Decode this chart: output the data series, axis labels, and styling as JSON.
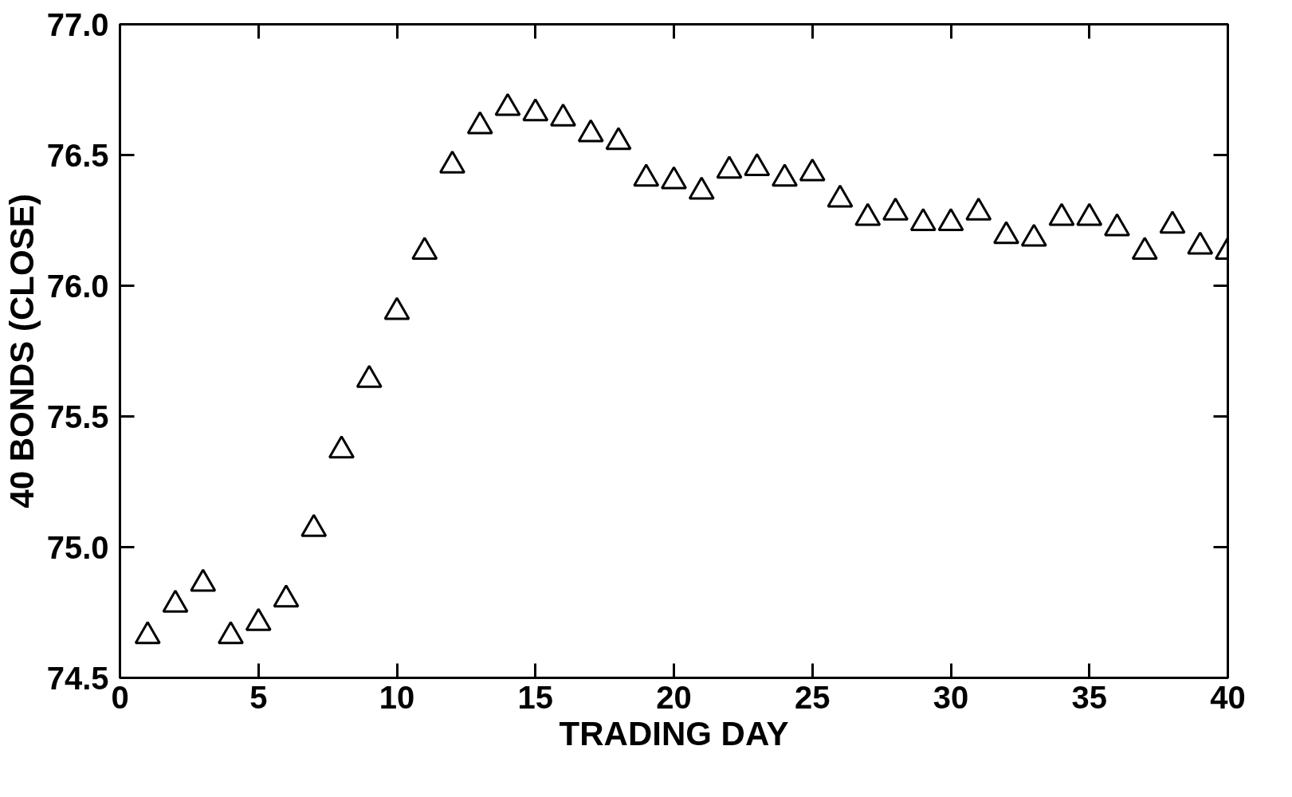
{
  "chart_data": {
    "type": "scatter",
    "xlabel": "TRADING DAY",
    "ylabel": "40 BONDS (CLOSE)",
    "x": [
      1,
      2,
      3,
      4,
      5,
      6,
      7,
      8,
      9,
      10,
      11,
      12,
      13,
      14,
      15,
      16,
      17,
      18,
      19,
      20,
      21,
      22,
      23,
      24,
      25,
      26,
      27,
      28,
      29,
      30,
      31,
      32,
      33,
      34,
      35,
      36,
      37,
      38,
      39,
      40
    ],
    "series": [
      {
        "color": "#000000",
        "values": [
          74.66,
          74.78,
          74.86,
          74.66,
          74.71,
          74.8,
          75.07,
          75.37,
          75.64,
          75.9,
          76.13,
          76.46,
          76.61,
          76.68,
          76.66,
          76.64,
          76.58,
          76.55,
          76.41,
          76.4,
          76.36,
          76.44,
          76.45,
          76.41,
          76.43,
          76.33,
          76.26,
          76.28,
          76.24,
          76.24,
          76.28,
          76.19,
          76.18,
          76.26,
          76.26,
          76.22,
          76.13,
          76.23,
          76.15,
          76.13
        ]
      }
    ],
    "marker": "triangle",
    "xlim": [
      0,
      40
    ],
    "ylim": [
      74.5,
      77.0
    ],
    "xticks": [
      0,
      5,
      10,
      15,
      20,
      25,
      30,
      35,
      40
    ],
    "yticks": [
      {
        "value": 74.5,
        "label": "74.5"
      },
      {
        "value": 75.0,
        "label": "75.0"
      },
      {
        "value": 75.5,
        "label": "75.5"
      },
      {
        "value": 76.0,
        "label": "76.0"
      },
      {
        "value": 76.5,
        "label": "76.5"
      },
      {
        "value": 77.0,
        "label": "77.0"
      }
    ],
    "grid": false
  }
}
